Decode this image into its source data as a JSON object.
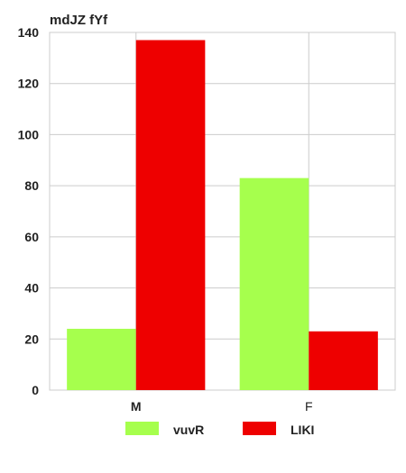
{
  "chart_data": {
    "type": "bar",
    "title": "mdJZ fYf",
    "xlabel": "",
    "ylabel": "",
    "categories": [
      "M",
      "F"
    ],
    "series": [
      {
        "name": "vuvR",
        "values": [
          24,
          83
        ],
        "color": "#a6ff4d"
      },
      {
        "name": "LIKI",
        "values": [
          137,
          23
        ],
        "color": "#ee0000"
      }
    ],
    "ylim": [
      0,
      140
    ],
    "yticks": [
      0,
      20,
      40,
      60,
      80,
      100,
      120,
      140
    ],
    "grid": true,
    "legend_position": "bottom"
  }
}
